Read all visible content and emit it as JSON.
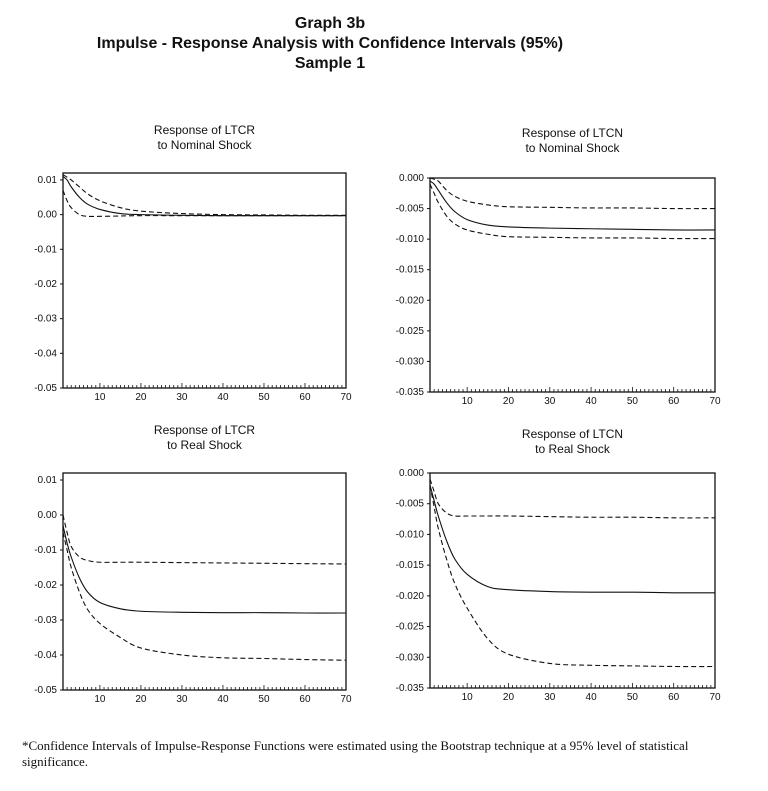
{
  "header": {
    "line1": "Graph 3b",
    "line2": "Impulse - Response Analysis with Confidence Intervals (95%)",
    "line3": "Sample 1"
  },
  "footnote": "*Confidence Intervals of Impulse-Response Functions were estimated using the Bootstrap technique at a 95% level of statistical significance.",
  "chart_data": [
    {
      "type": "line",
      "title": [
        "Response of LTCR",
        "to Nominal Shock"
      ],
      "xlim": [
        1,
        70
      ],
      "ylim": [
        -0.05,
        0.012
      ],
      "xticks": [
        10,
        20,
        30,
        40,
        50,
        60,
        70
      ],
      "yticks": [
        "0.01",
        "0.00",
        "-0.01",
        "-0.02",
        "-0.03",
        "-0.04",
        "-0.05"
      ],
      "ytick_values": [
        0.01,
        0,
        -0.01,
        -0.02,
        -0.03,
        -0.04,
        -0.05
      ],
      "x": [
        1,
        2,
        3,
        5,
        7,
        10,
        15,
        20,
        30,
        40,
        50,
        60,
        70
      ],
      "series": [
        {
          "style": "solid",
          "values": [
            0.011,
            0.01,
            0.008,
            0.005,
            0.003,
            0.0015,
            0.0003,
            0.0,
            -0.0002,
            -0.0003,
            -0.0003,
            -0.0003,
            -0.0003
          ]
        },
        {
          "style": "dashed",
          "values": [
            0.0115,
            0.0108,
            0.01,
            0.008,
            0.006,
            0.004,
            0.002,
            0.001,
            0.0003,
            0.0,
            -0.0001,
            -0.0002,
            -0.0002
          ]
        },
        {
          "style": "dashed",
          "values": [
            0.007,
            0.004,
            0.002,
            0.0,
            -0.0005,
            -0.0005,
            -0.0004,
            -0.0003,
            -0.0003,
            -0.0003,
            -0.0003,
            -0.0003,
            -0.0003
          ]
        }
      ]
    },
    {
      "type": "line",
      "title": [
        "Response of LTCN",
        "to Nominal Shock"
      ],
      "xlim": [
        1,
        70
      ],
      "ylim": [
        -0.035,
        0.0
      ],
      "xticks": [
        10,
        20,
        30,
        40,
        50,
        60,
        70
      ],
      "yticks": [
        "0.000",
        "-0.005",
        "-0.010",
        "-0.015",
        "-0.020",
        "-0.025",
        "-0.030",
        "-0.035"
      ],
      "ytick_values": [
        0,
        -0.005,
        -0.01,
        -0.015,
        -0.02,
        -0.025,
        -0.03,
        -0.035
      ],
      "x": [
        1,
        2,
        3,
        5,
        7,
        10,
        15,
        20,
        30,
        40,
        50,
        60,
        70
      ],
      "series": [
        {
          "style": "solid",
          "values": [
            -0.0005,
            -0.001,
            -0.002,
            -0.004,
            -0.0055,
            -0.0068,
            -0.0077,
            -0.008,
            -0.0082,
            -0.0083,
            -0.0084,
            -0.0085,
            -0.0085
          ]
        },
        {
          "style": "dashed",
          "values": [
            0.0,
            -0.0002,
            -0.0005,
            -0.002,
            -0.003,
            -0.0038,
            -0.0044,
            -0.0047,
            -0.0048,
            -0.0049,
            -0.0049,
            -0.005,
            -0.005
          ]
        },
        {
          "style": "dashed",
          "values": [
            -0.001,
            -0.0025,
            -0.004,
            -0.0062,
            -0.0075,
            -0.0085,
            -0.0092,
            -0.0096,
            -0.0097,
            -0.0098,
            -0.0098,
            -0.0099,
            -0.0099
          ]
        }
      ]
    },
    {
      "type": "line",
      "title": [
        "Response of LTCR",
        "to Real Shock"
      ],
      "xlim": [
        1,
        70
      ],
      "ylim": [
        -0.05,
        0.012
      ],
      "xticks": [
        10,
        20,
        30,
        40,
        50,
        60,
        70
      ],
      "yticks": [
        "0.01",
        "0.00",
        "-0.01",
        "-0.02",
        "-0.03",
        "-0.04",
        "-0.05"
      ],
      "ytick_values": [
        0.01,
        0,
        -0.01,
        -0.02,
        -0.03,
        -0.04,
        -0.05
      ],
      "x": [
        1,
        2,
        3,
        5,
        7,
        10,
        15,
        20,
        30,
        40,
        50,
        60,
        70
      ],
      "series": [
        {
          "style": "solid",
          "values": [
            -0.003,
            -0.008,
            -0.012,
            -0.018,
            -0.022,
            -0.025,
            -0.0268,
            -0.0275,
            -0.0278,
            -0.0279,
            -0.0279,
            -0.028,
            -0.028
          ]
        },
        {
          "style": "dashed",
          "values": [
            0.0,
            -0.005,
            -0.009,
            -0.012,
            -0.013,
            -0.0135,
            -0.0135,
            -0.0135,
            -0.0136,
            -0.0137,
            -0.0138,
            -0.0139,
            -0.014
          ]
        },
        {
          "style": "dashed",
          "values": [
            -0.005,
            -0.01,
            -0.015,
            -0.022,
            -0.027,
            -0.031,
            -0.035,
            -0.038,
            -0.04,
            -0.0408,
            -0.041,
            -0.0413,
            -0.0415
          ]
        }
      ]
    },
    {
      "type": "line",
      "title": [
        "Response of LTCN",
        "to Real Shock"
      ],
      "xlim": [
        1,
        70
      ],
      "ylim": [
        -0.035,
        0.0
      ],
      "xticks": [
        10,
        20,
        30,
        40,
        50,
        60,
        70
      ],
      "yticks": [
        "0.000",
        "-0.005",
        "-0.010",
        "-0.015",
        "-0.020",
        "-0.025",
        "-0.030",
        "-0.035"
      ],
      "ytick_values": [
        0,
        -0.005,
        -0.01,
        -0.015,
        -0.02,
        -0.025,
        -0.03,
        -0.035
      ],
      "x": [
        1,
        2,
        3,
        5,
        7,
        10,
        15,
        20,
        30,
        40,
        50,
        60,
        70
      ],
      "series": [
        {
          "style": "solid",
          "values": [
            -0.002,
            -0.0045,
            -0.007,
            -0.011,
            -0.014,
            -0.0165,
            -0.0185,
            -0.019,
            -0.0193,
            -0.0194,
            -0.0194,
            -0.0195,
            -0.0195
          ]
        },
        {
          "style": "dashed",
          "values": [
            -0.001,
            -0.003,
            -0.005,
            -0.0065,
            -0.007,
            -0.007,
            -0.007,
            -0.007,
            -0.0071,
            -0.0072,
            -0.0072,
            -0.0073,
            -0.0073
          ]
        },
        {
          "style": "dashed",
          "values": [
            -0.002,
            -0.0055,
            -0.009,
            -0.014,
            -0.018,
            -0.022,
            -0.027,
            -0.0295,
            -0.031,
            -0.0313,
            -0.0314,
            -0.0315,
            -0.0315
          ]
        }
      ]
    }
  ]
}
